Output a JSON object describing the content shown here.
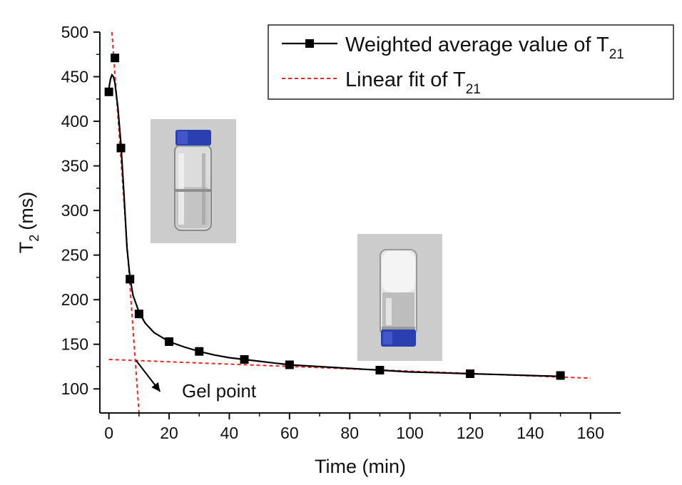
{
  "chart_data": {
    "type": "scatter",
    "title": "",
    "xlabel": "Time (min)",
    "ylabel_main": "T",
    "ylabel_sub": "2",
    "ylabel_unit": "(ms)",
    "xlim": [
      -3,
      170
    ],
    "ylim": [
      73,
      500
    ],
    "xticks": [
      0,
      20,
      40,
      60,
      80,
      100,
      120,
      140,
      160
    ],
    "yticks": [
      100,
      150,
      200,
      250,
      300,
      350,
      400,
      450,
      500
    ],
    "series": [
      {
        "name": "Weighted average value of T21",
        "legend_main": "Weighted average value of T",
        "legend_sub": "21",
        "style": "line+square-markers",
        "color": "#000000",
        "x": [
          0,
          2,
          4,
          7,
          10,
          20,
          30,
          45,
          60,
          90,
          120,
          150
        ],
        "y": [
          433,
          471,
          370,
          223,
          184,
          153,
          142,
          133,
          127,
          121,
          117,
          115
        ]
      },
      {
        "name": "Linear fit of T21",
        "legend_main": "Linear fit of T",
        "legend_sub": "21",
        "style": "dashed",
        "color": "#ff2020",
        "lines": [
          {
            "x": [
              1,
              10
            ],
            "y": [
              500,
              73
            ]
          },
          {
            "x": [
              0,
              160
            ],
            "y": [
              133,
              112
            ]
          }
        ]
      }
    ],
    "smooth_curve": {
      "x": [
        0,
        0.5,
        1,
        1.5,
        2,
        3,
        4,
        5,
        6,
        7,
        8,
        10,
        12,
        15,
        20,
        25,
        30,
        35,
        40,
        45,
        50,
        60,
        70,
        80,
        90,
        100,
        110,
        120,
        130,
        140,
        150
      ],
      "y": [
        437,
        447,
        452,
        450,
        443,
        415,
        375,
        318,
        258,
        225,
        205,
        186,
        174,
        163,
        153,
        147,
        142,
        138,
        135,
        133,
        131,
        127,
        125,
        123,
        121,
        119,
        118,
        117,
        116,
        115,
        114
      ]
    },
    "annotations": [
      {
        "text": "Gel point",
        "arrow_from": [
          9,
          132
        ],
        "arrow_to": [
          17,
          97
        ]
      }
    ],
    "insets": [
      {
        "name": "liquid-vial-photo",
        "description_hidden": true
      },
      {
        "name": "gel-vial-photo",
        "description_hidden": true
      }
    ],
    "colors": {
      "axis": "#111111",
      "marker": "#000000",
      "fit": "#ff2020",
      "inset_bg": "#cccccc",
      "cap": "#2a3fb0"
    }
  }
}
